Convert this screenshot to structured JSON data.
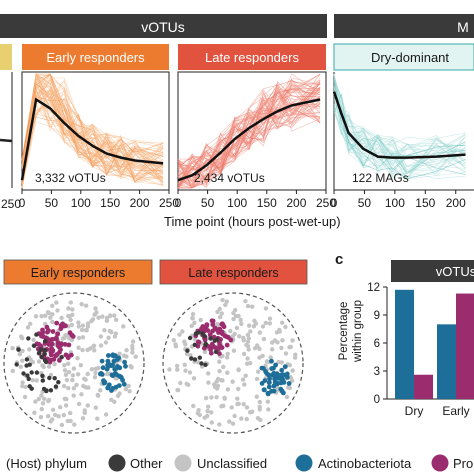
{
  "colors": {
    "header_dark": "#3a3a3a",
    "early": "#ec7a2f",
    "early_light": "#f7b27a",
    "late": "#e2533f",
    "late_light": "#f08a7c",
    "dry": "#3aaaa7",
    "dry_light": "#a6dcd9",
    "dry_panel_header": "#e1f4f2",
    "other": "#3a3a3a",
    "unclassified": "#c4c4c4",
    "actinobacteriota": "#1e6e9a",
    "proteobacteria": "#9b2c6e"
  },
  "top": {
    "section_header": "vOTUs",
    "section_header_right": "M",
    "x_axis_label": "Time point (hours post-wet-up)",
    "left_tick": "250",
    "panels": [
      {
        "title": "Early responders",
        "count_label": "3,332 vOTUs",
        "xticks": [
          "0",
          "50",
          "100",
          "150",
          "200",
          "250"
        ]
      },
      {
        "title": "Late responders",
        "count_label": "2,434 vOTUs",
        "xticks": [
          "0",
          "50",
          "100",
          "150",
          "200",
          "250"
        ]
      },
      {
        "title": "Dry-dominant",
        "count_label": "122 MAGs",
        "xticks": [
          "0",
          "50",
          "100",
          "150",
          "200"
        ]
      }
    ]
  },
  "networks": {
    "panels": [
      {
        "title": "Early responders"
      },
      {
        "title": "Late responders"
      }
    ]
  },
  "panel_c": {
    "letter": "c",
    "header": "vOTUs",
    "ylabel": "Percentage within group",
    "yticks": [
      "0",
      "3",
      "6",
      "9",
      "12"
    ],
    "categories": [
      "Dry",
      "Early"
    ]
  },
  "legend": {
    "title": "(Host) phylum",
    "items": [
      {
        "label": "Other",
        "color": "#3a3a3a"
      },
      {
        "label": "Unclassified",
        "color": "#c4c4c4"
      },
      {
        "label": "Actinobacteriota",
        "color": "#1e6e9a"
      },
      {
        "label": "Pro",
        "color": "#9b2c6e"
      }
    ]
  },
  "chart_data": [
    {
      "type": "line",
      "title": "Early responders",
      "xlabel": "Time point (hours post-wet-up)",
      "x": [
        0,
        24,
        48,
        72,
        96,
        120,
        144,
        168,
        192,
        240
      ],
      "series": [
        {
          "values": [
            0.1,
            0.92,
            0.83,
            0.68,
            0.55,
            0.45,
            0.37,
            0.33,
            0.3,
            0.27
          ]
        }
      ],
      "xlim": [
        0,
        250
      ],
      "ylim": [
        0,
        1.2
      ]
    },
    {
      "type": "line",
      "title": "Late responders",
      "xlabel": "Time point (hours post-wet-up)",
      "x": [
        0,
        24,
        48,
        72,
        96,
        120,
        144,
        168,
        192,
        240
      ],
      "series": [
        {
          "values": [
            0.1,
            0.15,
            0.25,
            0.38,
            0.52,
            0.63,
            0.72,
            0.8,
            0.86,
            0.92
          ]
        }
      ],
      "xlim": [
        0,
        250
      ],
      "ylim": [
        0,
        1.2
      ]
    },
    {
      "type": "line",
      "title": "Dry-dominant",
      "xlabel": "Time point (hours post-wet-up)",
      "x": [
        0,
        12,
        24,
        48,
        72,
        96,
        120,
        168,
        216
      ],
      "series": [
        {
          "values": [
            1.0,
            0.78,
            0.58,
            0.42,
            0.34,
            0.33,
            0.33,
            0.34,
            0.36
          ]
        }
      ],
      "xlim": [
        0,
        230
      ],
      "ylim": [
        0,
        1.2
      ]
    },
    {
      "type": "bar",
      "title": "vOTUs",
      "ylabel": "Percentage within group",
      "categories": [
        "Dry",
        "Early"
      ],
      "series": [
        {
          "name": "Actinobacteriota",
          "values": [
            11.7,
            8.0
          ]
        },
        {
          "name": "Proteobacteria",
          "values": [
            2.6,
            11.3
          ]
        }
      ],
      "ylim": [
        0,
        12
      ]
    }
  ]
}
